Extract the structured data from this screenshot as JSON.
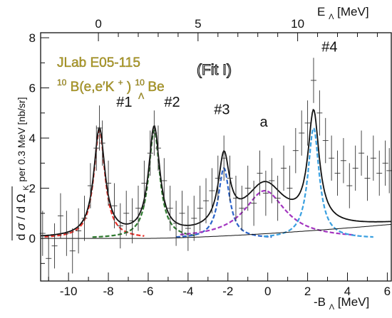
{
  "chart_data": {
    "type": "scatter",
    "experiment_label": "JLab E05-115",
    "reaction": {
      "prefix": "10",
      "target": "B(e,e′K",
      "kplus": "+",
      "close": ")",
      "hyp_mass": "10",
      "hyp_sub": "Λ",
      "product": "Be"
    },
    "fit_label": "(Fit I)",
    "xlabel": {
      "main": "-B",
      "sub": "Λ",
      "unit": " [MeV]"
    },
    "x2label": {
      "main": "E",
      "sub": "Λ",
      "unit": " [MeV]"
    },
    "ylabel": {
      "d1": "d",
      "sigma": "σ",
      "slash": "/",
      "d2": "d",
      "omega": "Ω",
      "omega_sub": "K",
      "rest": " per 0.3 MeV [nb/sr]"
    },
    "xlim": [
      -11.4,
      6.2
    ],
    "ylim": [
      -1.7,
      8.2
    ],
    "x_ticks": [
      -10,
      -8,
      -6,
      -4,
      -2,
      0,
      2,
      4,
      6
    ],
    "y_ticks": [
      0,
      2,
      4,
      6,
      8
    ],
    "x2_ticks": [
      0,
      5,
      10
    ],
    "x2_offset": 8.5,
    "peak_labels": [
      {
        "text": "#1",
        "x": -7.2,
        "y": 5.25
      },
      {
        "text": "#2",
        "x": -4.8,
        "y": 5.25
      },
      {
        "text": "#3",
        "x": -2.3,
        "y": 4.95
      },
      {
        "text": "a",
        "x": -0.2,
        "y": 4.45
      },
      {
        "text": "#4",
        "x": 3.1,
        "y": 7.45
      }
    ],
    "data_points": [
      [
        -11.3,
        0.2,
        0.9
      ],
      [
        -11.0,
        -0.8,
        0.9
      ],
      [
        -10.7,
        -0.3,
        0.9
      ],
      [
        -10.4,
        0.9,
        0.9
      ],
      [
        -10.1,
        0.2,
        0.9
      ],
      [
        -9.8,
        -0.5,
        0.9
      ],
      [
        -9.5,
        0.3,
        0.9
      ],
      [
        -9.2,
        0.8,
        0.9
      ],
      [
        -8.9,
        2.1,
        0.9
      ],
      [
        -8.6,
        3.6,
        0.9
      ],
      [
        -8.45,
        4.4,
        0.9
      ],
      [
        -8.3,
        3.8,
        0.9
      ],
      [
        -8.0,
        2.2,
        0.9
      ],
      [
        -7.7,
        1.3,
        0.9
      ],
      [
        -7.4,
        0.5,
        0.9
      ],
      [
        -7.1,
        1.0,
        0.9
      ],
      [
        -6.8,
        0.7,
        0.9
      ],
      [
        -6.5,
        1.2,
        0.9
      ],
      [
        -6.2,
        2.2,
        0.9
      ],
      [
        -5.9,
        3.4,
        0.9
      ],
      [
        -5.7,
        4.2,
        0.9
      ],
      [
        -5.5,
        3.6,
        0.9
      ],
      [
        -5.2,
        2.3,
        0.9
      ],
      [
        -4.9,
        1.2,
        0.9
      ],
      [
        -4.6,
        0.6,
        0.9
      ],
      [
        -4.3,
        1.0,
        0.9
      ],
      [
        -4.0,
        0.4,
        0.9
      ],
      [
        -3.7,
        0.8,
        0.9
      ],
      [
        -3.4,
        1.2,
        0.9
      ],
      [
        -3.1,
        1.5,
        0.9
      ],
      [
        -2.8,
        1.9,
        0.9
      ],
      [
        -2.5,
        2.4,
        0.9
      ],
      [
        -2.2,
        3.2,
        0.9
      ],
      [
        -1.9,
        2.4,
        0.9
      ],
      [
        -1.6,
        1.6,
        0.9
      ],
      [
        -1.3,
        1.2,
        0.9
      ],
      [
        -1.0,
        2.0,
        0.9
      ],
      [
        -0.7,
        1.4,
        0.9
      ],
      [
        -0.4,
        2.6,
        0.9
      ],
      [
        -0.1,
        1.8,
        0.9
      ],
      [
        0.2,
        2.3,
        0.9
      ],
      [
        0.5,
        1.6,
        0.9
      ],
      [
        0.8,
        2.8,
        0.9
      ],
      [
        1.1,
        2.0,
        0.9
      ],
      [
        1.4,
        3.5,
        0.9
      ],
      [
        1.7,
        4.2,
        0.9
      ],
      [
        2.0,
        4.6,
        0.9
      ],
      [
        2.3,
        6.3,
        0.9
      ],
      [
        2.6,
        5.0,
        0.9
      ],
      [
        2.9,
        3.9,
        0.9
      ],
      [
        3.2,
        3.2,
        0.9
      ],
      [
        3.5,
        2.6,
        0.9
      ],
      [
        3.8,
        3.1,
        0.9
      ],
      [
        4.1,
        2.1,
        0.9
      ],
      [
        4.4,
        2.8,
        0.9
      ],
      [
        4.7,
        3.4,
        0.9
      ],
      [
        5.0,
        2.4,
        0.9
      ],
      [
        5.3,
        3.2,
        0.9
      ],
      [
        5.6,
        2.6,
        0.9
      ],
      [
        5.9,
        3.0,
        0.9
      ],
      [
        6.1,
        2.7,
        0.9
      ]
    ],
    "fit_components": [
      {
        "type": "lorentz",
        "x0": -8.45,
        "amp": 4.3,
        "width": 0.34,
        "color": "#e8332b",
        "xrange": [
          -11.2,
          -6.2
        ]
      },
      {
        "type": "lorentz",
        "x0": -5.7,
        "amp": 4.3,
        "width": 0.34,
        "color": "#2f7a2f",
        "xrange": [
          -8.8,
          -3.6
        ]
      },
      {
        "type": "lorentz",
        "x0": -2.2,
        "amp": 2.8,
        "width": 0.34,
        "color": "#2b63c9",
        "xrange": [
          -4.6,
          0.2
        ]
      },
      {
        "type": "lorentz",
        "x0": -0.15,
        "amp": 1.9,
        "width": 1.25,
        "color": "#a335c0",
        "xrange": [
          -4.4,
          4.4
        ]
      },
      {
        "type": "lorentz",
        "x0": 2.3,
        "amp": 4.4,
        "width": 0.34,
        "color": "#3aa0e0",
        "xrange": [
          -0.2,
          5.3
        ]
      }
    ],
    "background": {
      "type": "qf",
      "threshold": -6.0,
      "slope": 0.0025,
      "scale": 1.05,
      "exponent": 1.5
    },
    "series": [
      {
        "name": "total fit",
        "color": "#111111"
      },
      {
        "name": "background",
        "color": "#111111"
      }
    ]
  }
}
